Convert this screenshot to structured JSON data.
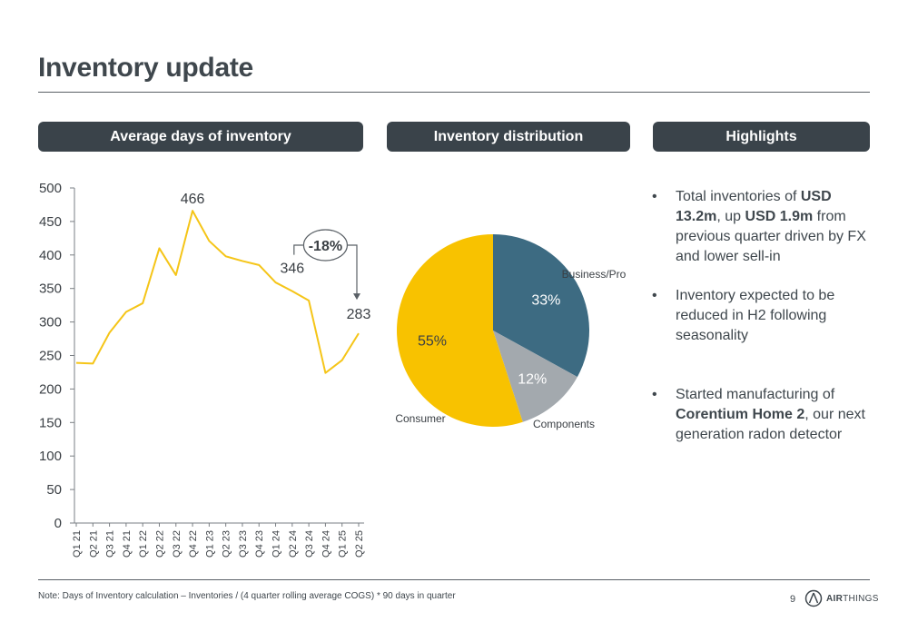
{
  "header": {
    "title": "Inventory update"
  },
  "panels": {
    "left": "Average days of inventory",
    "middle": "Inventory distribution",
    "right": "Highlights"
  },
  "chart_data": [
    {
      "type": "line",
      "title": "Average days of inventory",
      "categories": [
        "Q1 21",
        "Q2 21",
        "Q3 21",
        "Q4 21",
        "Q1 22",
        "Q2 22",
        "Q3 22",
        "Q4 22",
        "Q1 23",
        "Q2 23",
        "Q3 23",
        "Q4 23",
        "Q1 24",
        "Q2 24",
        "Q3 24",
        "Q4 24",
        "Q1 25",
        "Q2 25"
      ],
      "series": [
        {
          "values": [
            239,
            238,
            284,
            315,
            328,
            410,
            370,
            466,
            421,
            398,
            391,
            385,
            359,
            346,
            332,
            224,
            243,
            283
          ]
        }
      ],
      "ylim": [
        0,
        500
      ],
      "yticks": [
        0,
        50,
        100,
        150,
        200,
        250,
        300,
        350,
        400,
        450,
        500
      ],
      "data_labels": [
        {
          "category": "Q4 22",
          "text": "466"
        },
        {
          "category": "Q2 24",
          "text": "346"
        },
        {
          "category": "Q2 25",
          "text": "283"
        }
      ],
      "annotation": {
        "text": "-18%",
        "from": "Q2 24",
        "to": "Q2 25"
      },
      "color": "#F5C518",
      "grid": false
    },
    {
      "type": "pie",
      "title": "Inventory distribution",
      "slices": [
        {
          "label": "Business/Pro",
          "value": 33,
          "text": "33%",
          "color": "#3D6B82"
        },
        {
          "label": "Components",
          "value": 12,
          "text": "12%",
          "color": "#A3A9AE"
        },
        {
          "label": "Consumer",
          "value": 55,
          "text": "55%",
          "color": "#F8C200"
        }
      ]
    }
  ],
  "highlights": [
    {
      "parts": [
        {
          "t": "Total inventories of ",
          "b": false
        },
        {
          "t": "USD 13.2m",
          "b": true
        },
        {
          "t": ", up ",
          "b": false
        },
        {
          "t": "USD 1.9m",
          "b": true
        },
        {
          "t": " from previous quarter driven by FX and lower sell-in",
          "b": false
        }
      ]
    },
    {
      "parts": [
        {
          "t": "Inventory expected to be reduced in H2 following seasonality",
          "b": false
        }
      ]
    },
    {
      "parts": [
        {
          "t": "Started manufacturing of ",
          "b": false
        },
        {
          "t": "Corentium Home 2",
          "b": true
        },
        {
          "t": ", our next generation radon detector",
          "b": false
        }
      ]
    }
  ],
  "bullet_char": "•",
  "footer": {
    "note": "Note: Days of Inventory calculation – Inventories / (4 quarter rolling average COGS) * 90 days in quarter",
    "page": "9",
    "logo_text_bold": "AIR",
    "logo_text_rest": "THINGS"
  }
}
